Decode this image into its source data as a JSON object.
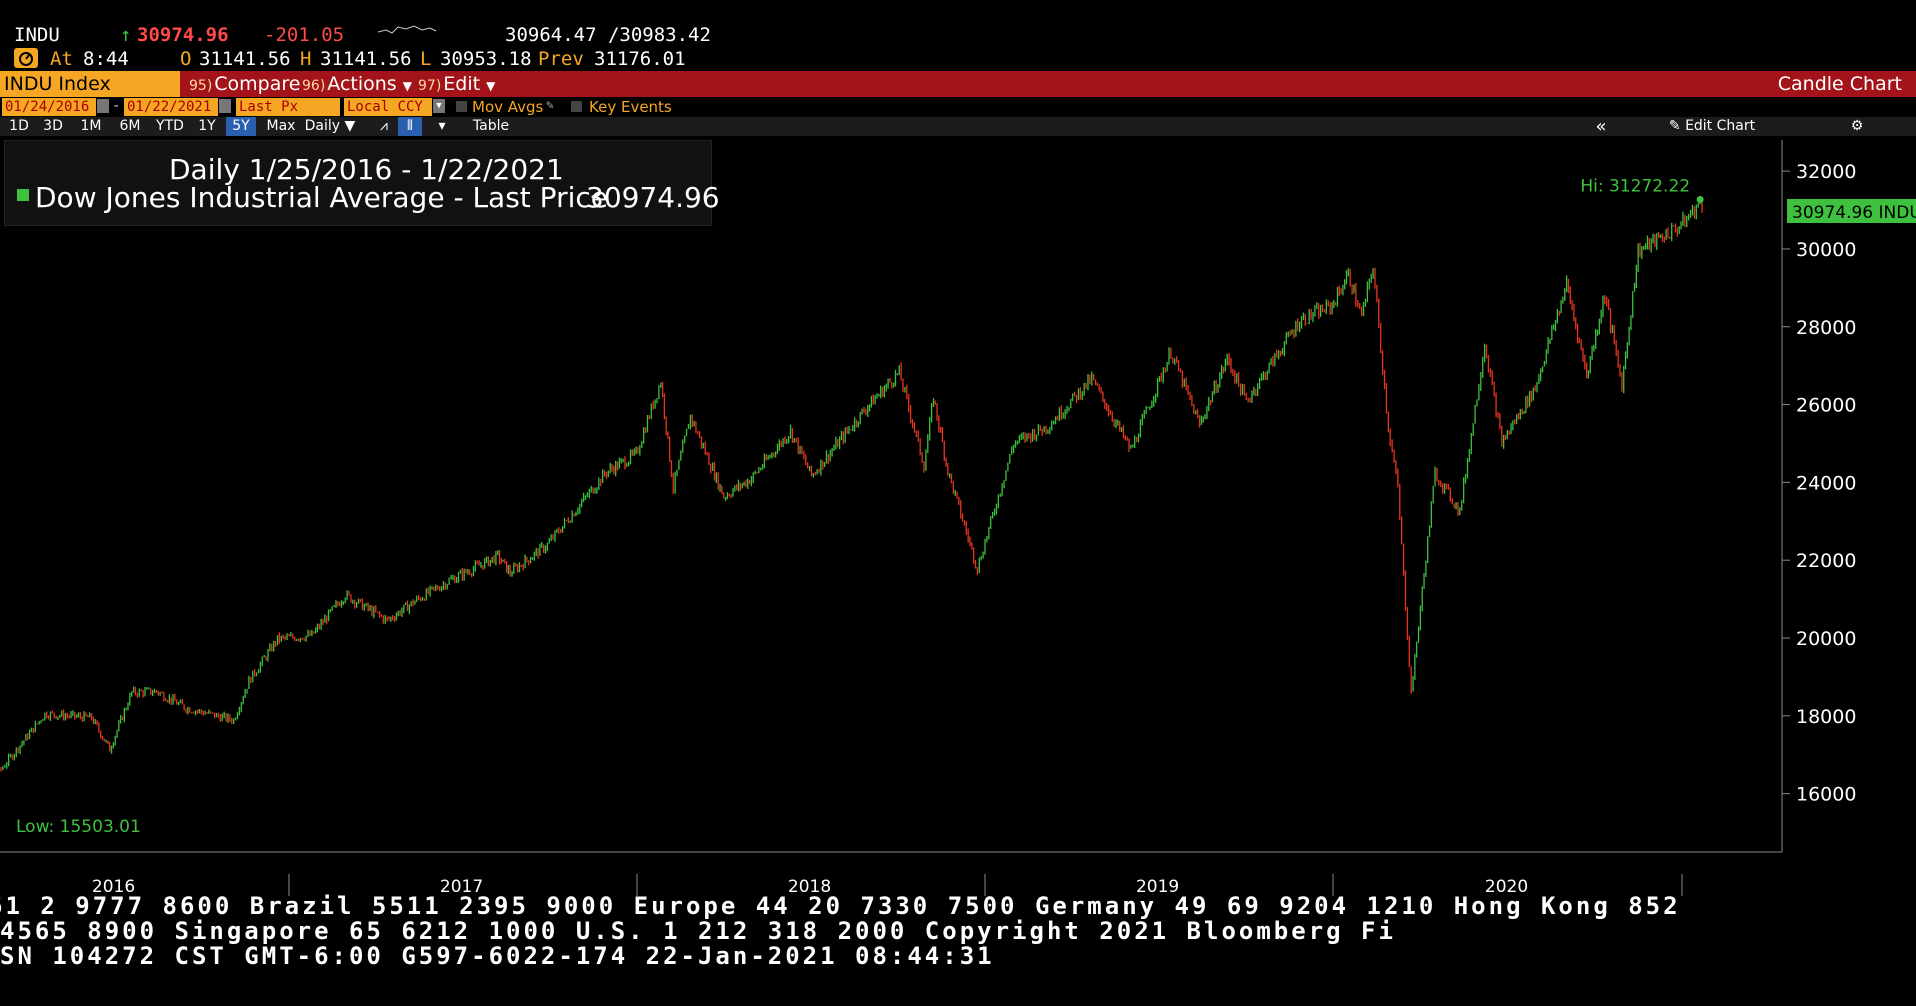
{
  "header": {
    "ticker": "INDU",
    "arrow": "↑",
    "last": "30974.96",
    "change": "-201.05",
    "bid_ask": "30964.47 /30983.42",
    "at_label": "At",
    "time": "8:44",
    "open_label": "O",
    "open": "31141.56",
    "high_label": "H",
    "high": "31141.56",
    "low_label": "L",
    "low": "30953.18",
    "prev_label": "Prev",
    "prev": "31176.01"
  },
  "toolbar": {
    "security": "INDU Index",
    "compare_num": "95)",
    "compare": "Compare",
    "actions_num": "96)",
    "actions": "Actions",
    "edit_num": "97)",
    "edit": "Edit",
    "chart_type": "Candle Chart"
  },
  "settings": {
    "start_date": "01/24/2016",
    "end_date": "01/22/2021",
    "field": "Last Px",
    "currency": "Local CCY",
    "mov_avgs": "Mov Avgs",
    "key_events": "Key Events"
  },
  "ranges": [
    "1D",
    "3D",
    "1M",
    "6M",
    "YTD",
    "1Y",
    "5Y",
    "Max"
  ],
  "selected_range": "5Y",
  "period": "Daily",
  "table_label": "Table",
  "edit_chart": "Edit Chart",
  "legend": {
    "line1": "Daily 1/25/2016 - 1/22/2021",
    "line2": "Dow Jones Industrial Average - Last Price",
    "value": "30974.96"
  },
  "annotations": {
    "hi": "Hi: 31272.22",
    "low": "Low: 15503.01",
    "last_tag": "30974.96 INDU"
  },
  "colors": {
    "up": "#3ec13e",
    "down": "#e8351f",
    "accent": "#f5a623",
    "toolbar": "#a3131a"
  },
  "chart_data": {
    "type": "line",
    "title": "Daily 1/25/2016 - 1/22/2021",
    "series_name": "Dow Jones Industrial Average - Last Price",
    "ylim": [
      14500,
      32800
    ],
    "y_ticks": [
      16000,
      18000,
      20000,
      22000,
      24000,
      26000,
      28000,
      30000,
      32000
    ],
    "x_labels": [
      "2016",
      "2017",
      "2018",
      "2019",
      "2020"
    ],
    "points": [
      [
        "2016-01-25",
        15900
      ],
      [
        "2016-02-11",
        15503
      ],
      [
        "2016-03-01",
        16500
      ],
      [
        "2016-04-20",
        18050
      ],
      [
        "2016-06-08",
        17950
      ],
      [
        "2016-06-27",
        17140
      ],
      [
        "2016-07-20",
        18600
      ],
      [
        "2016-08-15",
        18630
      ],
      [
        "2016-09-15",
        18200
      ],
      [
        "2016-11-04",
        17890
      ],
      [
        "2016-11-20",
        18900
      ],
      [
        "2016-12-20",
        19970
      ],
      [
        "2017-01-25",
        20070
      ],
      [
        "2017-03-01",
        21110
      ],
      [
        "2017-04-14",
        20450
      ],
      [
        "2017-05-15",
        20980
      ],
      [
        "2017-06-20",
        21500
      ],
      [
        "2017-08-08",
        22100
      ],
      [
        "2017-08-21",
        21680
      ],
      [
        "2017-09-29",
        22400
      ],
      [
        "2017-11-30",
        24270
      ],
      [
        "2017-12-31",
        24720
      ],
      [
        "2018-01-26",
        26600
      ],
      [
        "2018-02-08",
        23860
      ],
      [
        "2018-02-26",
        25700
      ],
      [
        "2018-04-02",
        23640
      ],
      [
        "2018-05-01",
        24100
      ],
      [
        "2018-06-11",
        25320
      ],
      [
        "2018-07-03",
        24170
      ],
      [
        "2018-08-31",
        25960
      ],
      [
        "2018-10-03",
        26830
      ],
      [
        "2018-10-29",
        24440
      ],
      [
        "2018-11-08",
        26190
      ],
      [
        "2018-11-23",
        24290
      ],
      [
        "2018-12-24",
        21790
      ],
      [
        "2019-01-31",
        25000
      ],
      [
        "2019-03-08",
        25450
      ],
      [
        "2019-04-23",
        26660
      ],
      [
        "2019-06-03",
        24820
      ],
      [
        "2019-07-15",
        27360
      ],
      [
        "2019-08-14",
        25480
      ],
      [
        "2019-09-12",
        27180
      ],
      [
        "2019-10-02",
        26080
      ],
      [
        "2019-11-27",
        28160
      ],
      [
        "2019-12-31",
        28540
      ],
      [
        "2020-01-17",
        29350
      ],
      [
        "2020-01-31",
        28260
      ],
      [
        "2020-02-12",
        29550
      ],
      [
        "2020-02-28",
        25410
      ],
      [
        "2020-03-09",
        23850
      ],
      [
        "2020-03-23",
        18590
      ],
      [
        "2020-04-17",
        24240
      ],
      [
        "2020-05-13",
        23250
      ],
      [
        "2020-06-08",
        27570
      ],
      [
        "2020-06-26",
        25020
      ],
      [
        "2020-07-31",
        26430
      ],
      [
        "2020-09-02",
        29100
      ],
      [
        "2020-09-23",
        26760
      ],
      [
        "2020-10-12",
        28840
      ],
      [
        "2020-10-30",
        26500
      ],
      [
        "2020-11-16",
        29950
      ],
      [
        "2020-12-31",
        30606
      ],
      [
        "2021-01-20",
        31188
      ],
      [
        "2021-01-22",
        30975
      ]
    ]
  },
  "footer": {
    "line1": "61 2 9777 8600 Brazil 5511 2395 9000 Europe 44 20 7330 7500 Germany 49 69 9204 1210 Hong Kong 852",
    "line2": " 4565 8900       Singapore 65 6212 1000       U.S. 1 212 318 2000         Copyright 2021 Bloomberg Fi",
    "line3": "                SN 104272 CST  GMT-6:00 G597-6022-174 22-Jan-2021 08:44:31"
  }
}
